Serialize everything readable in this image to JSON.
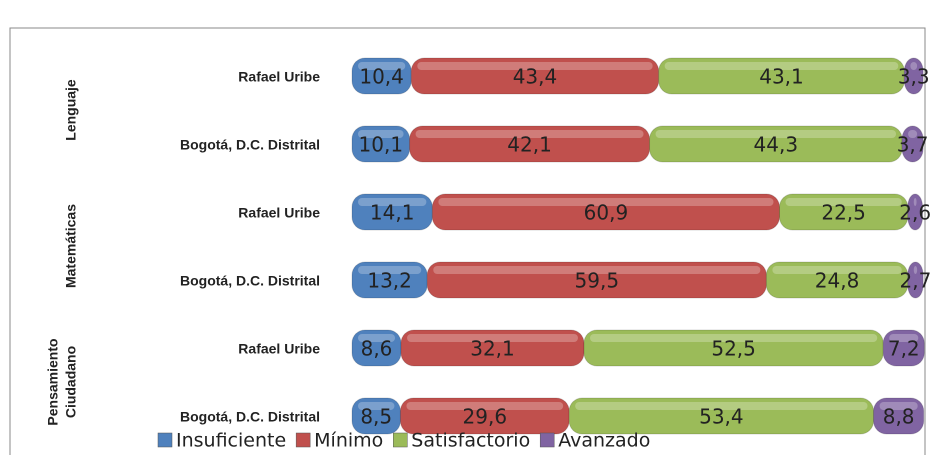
{
  "chart_data": {
    "type": "bar",
    "orientation": "horizontal",
    "stacked": true,
    "categories": [
      "Rafael Uribe",
      "Bogotá, D.C. Distrital",
      "Rafael Uribe",
      "Bogotá, D.C. Distrital",
      "Rafael Uribe",
      "Bogotá, D.C. Distrital"
    ],
    "groups": [
      [
        "Lenguaje"
      ],
      [
        "Matemáticas"
      ],
      [
        "Pensamiento",
        "Ciudadano"
      ]
    ],
    "xlim": [
      0,
      100
    ],
    "legend": "bottom",
    "series": [
      {
        "name": "Insuficiente",
        "color": "#4f81bd",
        "values": [
          10.4,
          10.1,
          14.1,
          13.2,
          8.6,
          8.5
        ],
        "value_labels": [
          "10,4",
          "10,1",
          "14,1",
          "13,2",
          "8,6",
          "8,5"
        ]
      },
      {
        "name": "Mínimo",
        "color": "#c0504d",
        "values": [
          43.4,
          42.1,
          60.9,
          59.5,
          32.1,
          29.6
        ],
        "value_labels": [
          "43,4",
          "42,1",
          "60,9",
          "59,5",
          "32,1",
          "29,6"
        ]
      },
      {
        "name": "Satisfactorio",
        "color": "#9bbb59",
        "values": [
          43.1,
          44.3,
          22.5,
          24.8,
          52.5,
          53.4
        ],
        "value_labels": [
          "43,1",
          "44,3",
          "22,5",
          "24,8",
          "52,5",
          "53,4"
        ]
      },
      {
        "name": "Avanzado",
        "color": "#8064a2",
        "values": [
          3.3,
          3.7,
          2.6,
          2.7,
          7.2,
          8.8
        ],
        "value_labels": [
          "3,3",
          "3,7",
          "2,6",
          "2,7",
          "7,2",
          "8,8"
        ]
      }
    ]
  }
}
